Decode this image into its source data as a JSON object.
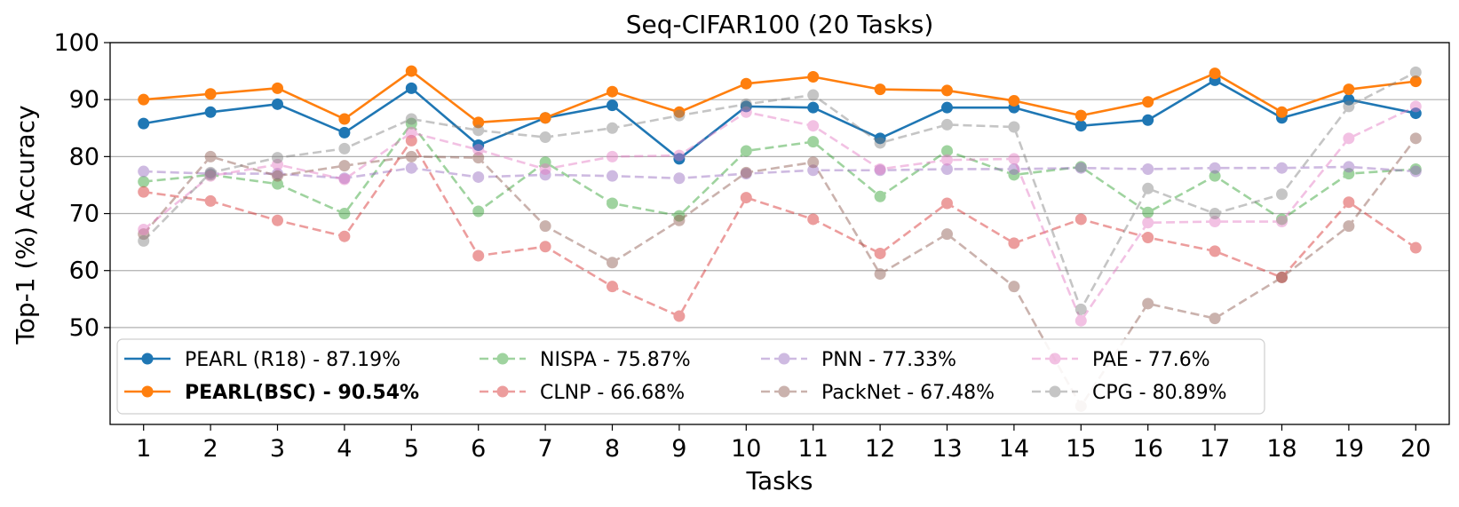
{
  "chart_data": {
    "type": "line",
    "title": "Seq-CIFAR100 (20 Tasks)",
    "xlabel": "Tasks",
    "ylabel": "Top-1 (%) Accuracy",
    "x": [
      1,
      2,
      3,
      4,
      5,
      6,
      7,
      8,
      9,
      10,
      11,
      12,
      13,
      14,
      15,
      16,
      17,
      18,
      19,
      20
    ],
    "xlim": [
      0.5,
      20.5
    ],
    "ylim": [
      33,
      100
    ],
    "yticks": [
      50,
      60,
      70,
      80,
      90,
      100
    ],
    "grid": "horizontal",
    "legend_position": "lower-left",
    "series": [
      {
        "name": "PEARL (R18) - 87.19%",
        "color": "#1f77b4",
        "style": "solid",
        "alpha": 1.0,
        "bold": false,
        "values": [
          85.8,
          87.8,
          89.2,
          84.2,
          92.0,
          82.0,
          86.8,
          89.0,
          79.6,
          88.8,
          88.6,
          83.2,
          88.6,
          88.6,
          85.4,
          86.4,
          93.4,
          86.8,
          90.0,
          87.6
        ]
      },
      {
        "name": "PEARL(BSC) - 90.54%",
        "color": "#ff7f0e",
        "style": "solid",
        "alpha": 1.0,
        "bold": true,
        "values": [
          90.0,
          91.0,
          92.0,
          86.6,
          95.0,
          86.0,
          86.8,
          91.4,
          87.8,
          92.8,
          94.0,
          91.8,
          91.6,
          89.8,
          87.2,
          89.6,
          94.6,
          87.8,
          91.8,
          93.2
        ]
      },
      {
        "name": "NISPA - 75.87%",
        "color": "#2ca02c",
        "style": "dashed",
        "alpha": 0.45,
        "bold": false,
        "values": [
          75.6,
          76.8,
          75.2,
          70.0,
          85.8,
          70.4,
          79.0,
          71.8,
          69.6,
          81.0,
          82.6,
          73.0,
          81.0,
          76.8,
          78.2,
          70.2,
          76.6,
          69.0,
          77.0,
          77.8
        ]
      },
      {
        "name": "CLNP - 66.68%",
        "color": "#d62728",
        "style": "dashed",
        "alpha": 0.45,
        "bold": false,
        "values": [
          73.8,
          72.2,
          68.8,
          66.0,
          82.8,
          62.6,
          64.2,
          57.2,
          52.0,
          72.8,
          69.0,
          63.0,
          71.8,
          64.8,
          69.0,
          65.8,
          63.4,
          58.8,
          72.0,
          64.0
        ]
      },
      {
        "name": "PNN - 77.33%",
        "color": "#9467bd",
        "style": "dashed",
        "alpha": 0.45,
        "bold": false,
        "values": [
          77.4,
          77.0,
          77.0,
          76.2,
          78.0,
          76.4,
          76.8,
          76.6,
          76.2,
          77.0,
          77.6,
          77.6,
          77.8,
          77.8,
          78.0,
          77.8,
          78.0,
          78.0,
          78.2,
          77.4
        ]
      },
      {
        "name": "PackNet - 67.48%",
        "color": "#8c564b",
        "style": "dashed",
        "alpha": 0.45,
        "bold": false,
        "values": [
          66.4,
          80.0,
          76.6,
          78.4,
          80.0,
          79.8,
          67.8,
          61.4,
          68.8,
          77.2,
          79.0,
          59.4,
          66.4,
          57.2,
          36.2,
          54.2,
          51.6,
          58.8,
          67.8,
          83.2
        ]
      },
      {
        "name": "PAE - 77.6%",
        "color": "#e377c2",
        "style": "dashed",
        "alpha": 0.45,
        "bold": false,
        "values": [
          67.2,
          76.6,
          78.6,
          76.0,
          84.2,
          81.2,
          77.8,
          80.0,
          80.2,
          87.8,
          85.4,
          77.8,
          79.4,
          79.6,
          51.2,
          68.4,
          68.6,
          68.6,
          83.2,
          88.8
        ]
      },
      {
        "name": "CPG - 80.89%",
        "color": "#7f7f7f",
        "style": "dashed",
        "alpha": 0.45,
        "bold": false,
        "values": [
          65.2,
          77.2,
          79.8,
          81.4,
          86.6,
          84.6,
          83.4,
          85.0,
          87.2,
          89.2,
          90.8,
          82.4,
          85.6,
          85.2,
          53.2,
          74.4,
          70.0,
          73.4,
          88.8,
          94.8
        ]
      }
    ]
  }
}
